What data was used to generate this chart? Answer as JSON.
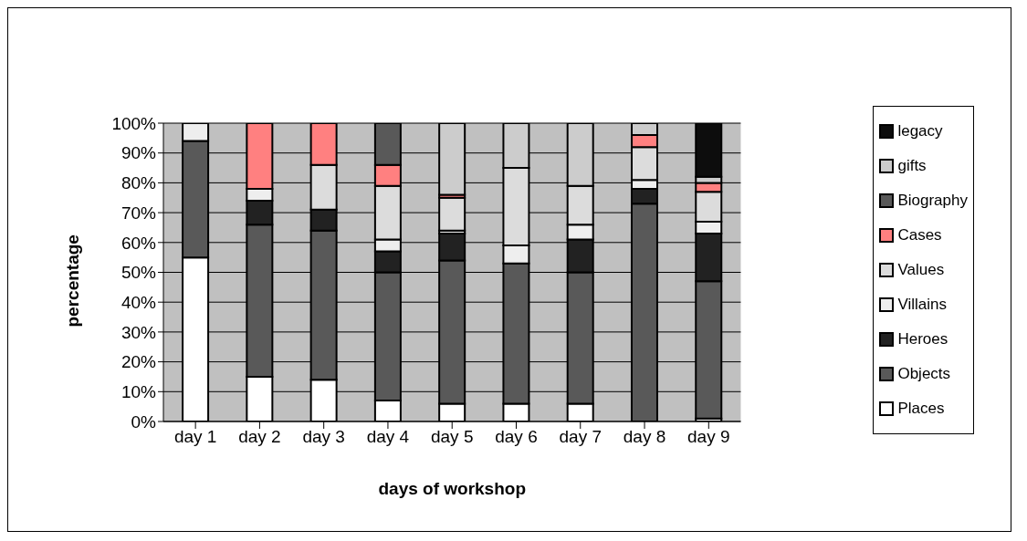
{
  "chart_data": {
    "type": "bar",
    "stacked": true,
    "xlabel": "days of workshop",
    "ylabel": "percentage",
    "categories": [
      "day 1",
      "day 2",
      "day 3",
      "day 4",
      "day 5",
      "day 6",
      "day 7",
      "day 8",
      "day 9"
    ],
    "series": [
      {
        "name": "Places",
        "color": "#ffffff",
        "values": [
          55,
          15,
          14,
          7,
          6,
          6,
          6,
          0,
          1
        ]
      },
      {
        "name": "Objects",
        "color": "#595959",
        "values": [
          39,
          51,
          50,
          43,
          48,
          47,
          44,
          73,
          46
        ]
      },
      {
        "name": "Heroes",
        "color": "#222222",
        "values": [
          0,
          8,
          7,
          7,
          9,
          0,
          11,
          5,
          16
        ]
      },
      {
        "name": "Villains",
        "color": "#eeeeee",
        "values": [
          6,
          4,
          0,
          4,
          1,
          6,
          5,
          3,
          4
        ]
      },
      {
        "name": "Values",
        "color": "#dcdcdc",
        "values": [
          0,
          0,
          15,
          18,
          11,
          26,
          13,
          11,
          10
        ]
      },
      {
        "name": "Cases",
        "color": "#ff8080",
        "values": [
          0,
          22,
          14,
          7,
          1,
          0,
          0,
          4,
          3
        ]
      },
      {
        "name": "Biography",
        "color": "#595959",
        "values": [
          0,
          0,
          0,
          14,
          0,
          0,
          0,
          0,
          0
        ]
      },
      {
        "name": "gifts",
        "color": "#cccccc",
        "values": [
          0,
          0,
          0,
          0,
          24,
          15,
          21,
          4,
          2
        ]
      },
      {
        "name": "legacy",
        "color": "#0d0d0d",
        "values": [
          0,
          0,
          0,
          0,
          0,
          0,
          0,
          0,
          18
        ]
      }
    ],
    "ylim": [
      0,
      100
    ],
    "yticks": [
      {
        "value": 0,
        "label": "0%"
      },
      {
        "value": 10,
        "label": "10%"
      },
      {
        "value": 20,
        "label": "20%"
      },
      {
        "value": 30,
        "label": "30%"
      },
      {
        "value": 40,
        "label": "40%"
      },
      {
        "value": 50,
        "label": "50%"
      },
      {
        "value": 60,
        "label": "60%"
      },
      {
        "value": 70,
        "label": "70%"
      },
      {
        "value": 80,
        "label": "80%"
      },
      {
        "value": 90,
        "label": "90%"
      },
      {
        "value": 100,
        "label": "100%"
      }
    ],
    "grid": "y",
    "legend": "right"
  }
}
